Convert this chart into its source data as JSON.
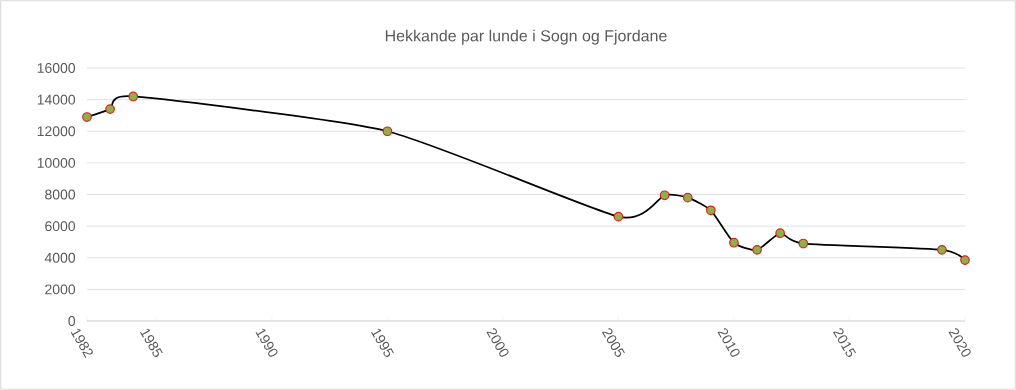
{
  "chart_data": {
    "type": "line",
    "title": "Hekkande par lunde i Sogn og Fjordane",
    "x": [
      1982,
      1983,
      1984,
      1995,
      2005,
      2007,
      2008,
      2009,
      2010,
      2011,
      2012,
      2013,
      2019,
      2020
    ],
    "series": [
      {
        "color": "#000000",
        "values": [
          12900,
          13400,
          14200,
          12000,
          6600,
          7950,
          7800,
          7000,
          4950,
          4500,
          5550,
          4900,
          4500,
          3850
        ]
      }
    ],
    "xlim": [
      1982,
      2020
    ],
    "xticks": [
      1982,
      1985,
      1990,
      1995,
      2000,
      2005,
      2010,
      2015,
      2020
    ],
    "ylim": [
      0,
      16000
    ],
    "yticks": [
      0,
      2000,
      4000,
      6000,
      8000,
      10000,
      12000,
      14000,
      16000
    ],
    "grid": "y",
    "marker": "circle"
  }
}
